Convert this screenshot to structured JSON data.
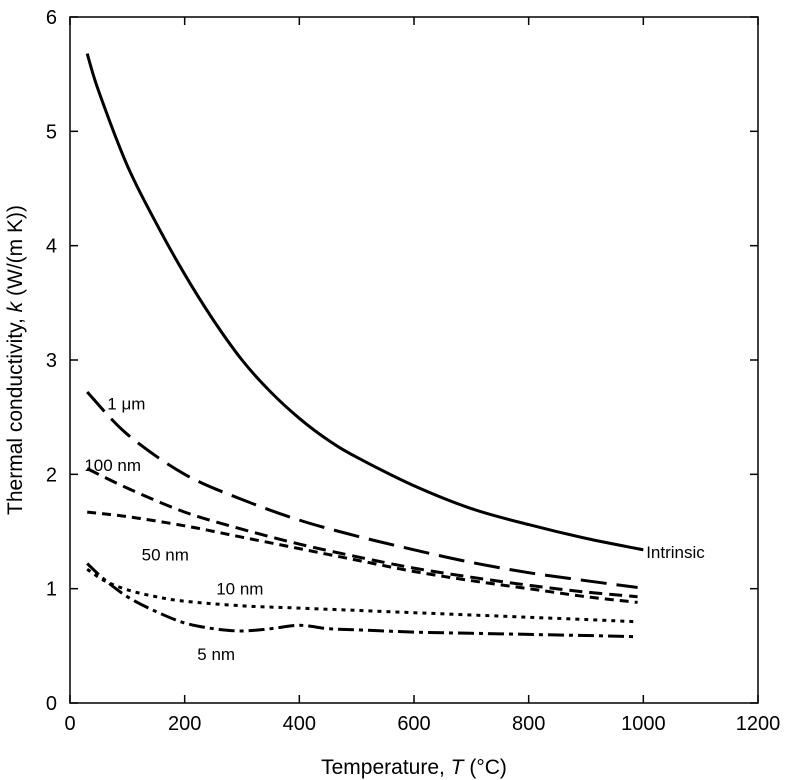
{
  "chart_data": {
    "type": "line",
    "title": "",
    "xlabel": "Temperature, T (°C)",
    "xlabel_parts": {
      "prefix": "Temperature, ",
      "var": "T",
      "suffix": " (°C)"
    },
    "ylabel": "Thermal conductivity, k (W/(m K))",
    "ylabel_parts": {
      "prefix": "Thermal conductivity, ",
      "var": "k",
      "suffix": " (W/(m K))"
    },
    "xlim": [
      0,
      1200
    ],
    "ylim": [
      0,
      6
    ],
    "xticks": [
      0,
      200,
      400,
      600,
      800,
      1000,
      1200
    ],
    "yticks": [
      0,
      1,
      2,
      3,
      4,
      5,
      6
    ],
    "grid": false,
    "legend": "none",
    "series": [
      {
        "name": "Intrinsic",
        "dash": "none",
        "x": [
          30,
          50,
          100,
          150,
          200,
          250,
          300,
          350,
          400,
          450,
          500,
          600,
          700,
          800,
          900,
          1000
        ],
        "y": [
          5.68,
          5.35,
          4.7,
          4.2,
          3.75,
          3.35,
          3.0,
          2.72,
          2.49,
          2.3,
          2.15,
          1.9,
          1.7,
          1.56,
          1.44,
          1.34
        ],
        "label_x": 1005,
        "label_y": 1.32,
        "label_anchor": "start"
      },
      {
        "name": "1 μm",
        "dash": "26 10",
        "x": [
          30,
          100,
          200,
          300,
          400,
          500,
          600,
          700,
          800,
          900,
          990
        ],
        "y": [
          2.72,
          2.35,
          2.0,
          1.78,
          1.6,
          1.46,
          1.34,
          1.23,
          1.14,
          1.07,
          1.01
        ],
        "label_x": 65,
        "label_y": 2.62,
        "label_anchor": "start"
      },
      {
        "name": "100 nm",
        "dash": "13 7",
        "x": [
          30,
          100,
          200,
          300,
          400,
          500,
          600,
          700,
          800,
          900,
          990
        ],
        "y": [
          2.05,
          1.88,
          1.67,
          1.52,
          1.39,
          1.28,
          1.18,
          1.1,
          1.03,
          0.97,
          0.93
        ],
        "label_x": 25,
        "label_y": 2.08,
        "label_anchor": "start"
      },
      {
        "name": "50 nm",
        "dash": "9 6",
        "x": [
          30,
          100,
          200,
          300,
          400,
          500,
          600,
          700,
          800,
          900,
          990
        ],
        "y": [
          1.67,
          1.63,
          1.55,
          1.45,
          1.35,
          1.25,
          1.15,
          1.07,
          1.0,
          0.93,
          0.88
        ],
        "label_x": 125,
        "label_y": 1.3,
        "label_anchor": "start"
      },
      {
        "name": "10 nm",
        "dash": "4 5",
        "x": [
          30,
          60,
          100,
          150,
          200,
          300,
          400,
          500,
          600,
          700,
          800,
          900,
          990
        ],
        "y": [
          1.17,
          1.07,
          0.99,
          0.93,
          0.89,
          0.85,
          0.83,
          0.81,
          0.79,
          0.77,
          0.75,
          0.73,
          0.71
        ],
        "label_x": 255,
        "label_y": 1.0,
        "label_anchor": "start"
      },
      {
        "name": "5 nm",
        "dash": "16 5 4 5",
        "x": [
          30,
          60,
          100,
          150,
          200,
          250,
          300,
          350,
          400,
          450,
          500,
          600,
          700,
          800,
          900,
          990
        ],
        "y": [
          1.22,
          1.08,
          0.93,
          0.8,
          0.7,
          0.65,
          0.63,
          0.65,
          0.68,
          0.65,
          0.64,
          0.62,
          0.61,
          0.6,
          0.59,
          0.58
        ],
        "label_x": 255,
        "label_y": 0.43,
        "label_anchor": "middle"
      }
    ]
  }
}
